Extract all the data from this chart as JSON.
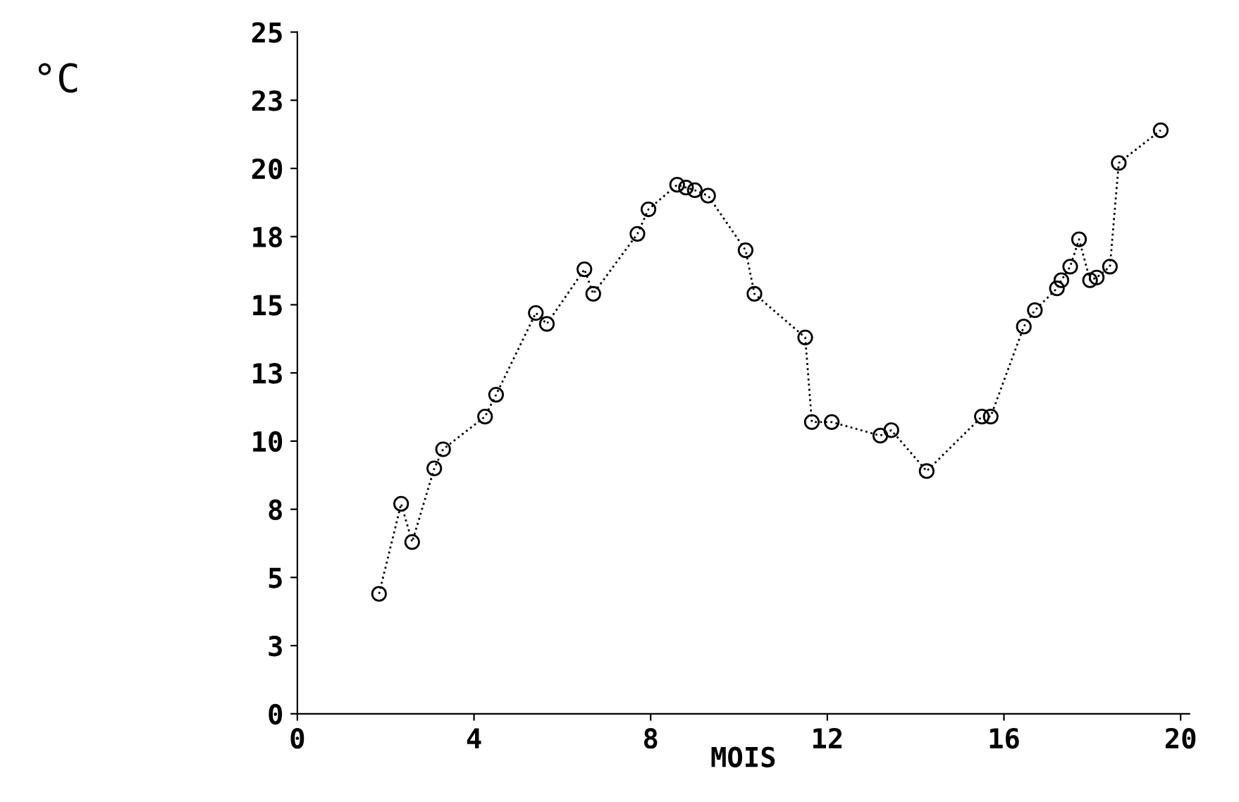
{
  "chart_data": {
    "type": "line",
    "xlabel": "MOIS",
    "ylabel": "°C",
    "x": [
      1.85,
      2.35,
      2.6,
      3.1,
      3.3,
      4.25,
      4.5,
      5.4,
      5.65,
      6.5,
      6.7,
      7.7,
      7.95,
      8.6,
      8.8,
      9.0,
      9.3,
      10.15,
      10.35,
      11.5,
      11.65,
      12.1,
      13.2,
      13.45,
      14.25,
      15.5,
      15.7,
      16.45,
      16.7,
      17.2,
      17.3,
      17.5,
      17.7,
      17.95,
      18.1,
      18.4,
      18.6,
      19.55
    ],
    "series": [
      {
        "color": "#000000",
        "values": [
          4.4,
          7.7,
          6.3,
          9.0,
          9.7,
          10.9,
          11.7,
          14.7,
          14.3,
          16.3,
          15.4,
          17.6,
          18.5,
          19.4,
          19.3,
          19.2,
          19.0,
          17.0,
          15.4,
          13.8,
          10.7,
          10.7,
          10.2,
          10.4,
          8.9,
          10.9,
          10.9,
          14.2,
          14.8,
          15.6,
          15.9,
          16.4,
          17.4,
          15.9,
          16.0,
          16.4,
          20.2,
          21.4
        ]
      }
    ],
    "xlim": [
      0,
      20.2
    ],
    "xticks": [
      0,
      4,
      8,
      12,
      16,
      20
    ],
    "ylim": [
      0,
      25
    ],
    "yticks": [
      0,
      {
        "value": 2.5,
        "label": "3"
      },
      5,
      {
        "value": 7.5,
        "label": "8"
      },
      10,
      {
        "value": 12.5,
        "label": "13"
      },
      15,
      {
        "value": 17.5,
        "label": "18"
      },
      20,
      {
        "value": 22.5,
        "label": "23"
      },
      25
    ],
    "grid": false,
    "legend": false,
    "marker": "circle",
    "line_style": "dotted"
  }
}
